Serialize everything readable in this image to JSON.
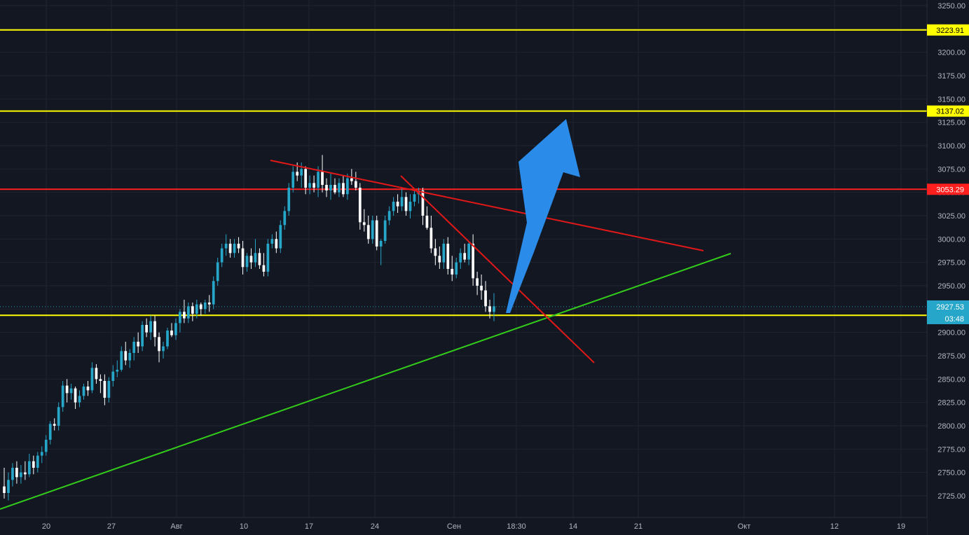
{
  "colors": {
    "background": "#131722",
    "grid": "#1f2431",
    "axis_text": "#b2b5be",
    "candle_up": "#26a6c8",
    "candle_down": "#ffffff",
    "support_line": "#ffff00",
    "resistance_line": "#ff1f1f",
    "trend_line_green": "#33cc1a",
    "trend_line_red": "#e01818",
    "current_price": "#26a6c8",
    "arrow": "#2a8ce8"
  },
  "chart_data": {
    "type": "candlestick",
    "y_range": [
      2705,
      3255
    ],
    "y_ticks": [
      "3250.00",
      "3225.00",
      "3200.00",
      "3175.00",
      "3150.00",
      "3125.00",
      "3100.00",
      "3075.00",
      "3050.00",
      "3025.00",
      "3000.00",
      "2975.00",
      "2950.00",
      "2925.00",
      "2900.00",
      "2875.00",
      "2850.00",
      "2825.00",
      "2800.00",
      "2775.00",
      "2750.00",
      "2725.00"
    ],
    "x_ticks": [
      "20",
      "27",
      "Авг",
      "10",
      "17",
      "24",
      "Сен",
      "18:30",
      "14",
      "21",
      "Окт",
      "12",
      "19"
    ],
    "candles": [
      [
        2735,
        2755,
        2722,
        2728
      ],
      [
        2728,
        2750,
        2720,
        2742
      ],
      [
        2742,
        2760,
        2735,
        2755
      ],
      [
        2755,
        2762,
        2738,
        2745
      ],
      [
        2745,
        2758,
        2738,
        2750
      ],
      [
        2750,
        2762,
        2742,
        2748
      ],
      [
        2748,
        2770,
        2745,
        2762
      ],
      [
        2762,
        2768,
        2748,
        2755
      ],
      [
        2755,
        2772,
        2750,
        2768
      ],
      [
        2768,
        2778,
        2760,
        2772
      ],
      [
        2772,
        2790,
        2768,
        2785
      ],
      [
        2785,
        2805,
        2780,
        2802
      ],
      [
        2802,
        2808,
        2795,
        2800
      ],
      [
        2800,
        2825,
        2795,
        2820
      ],
      [
        2820,
        2848,
        2815,
        2843
      ],
      [
        2843,
        2850,
        2825,
        2835
      ],
      [
        2835,
        2845,
        2828,
        2840
      ],
      [
        2840,
        2842,
        2818,
        2825
      ],
      [
        2825,
        2838,
        2820,
        2832
      ],
      [
        2832,
        2845,
        2828,
        2842
      ],
      [
        2842,
        2848,
        2832,
        2838
      ],
      [
        2838,
        2868,
        2835,
        2862
      ],
      [
        2862,
        2866,
        2845,
        2850
      ],
      [
        2850,
        2855,
        2835,
        2848
      ],
      [
        2848,
        2855,
        2822,
        2830
      ],
      [
        2830,
        2852,
        2825,
        2848
      ],
      [
        2848,
        2865,
        2842,
        2858
      ],
      [
        2858,
        2870,
        2852,
        2860
      ],
      [
        2860,
        2885,
        2858,
        2880
      ],
      [
        2880,
        2890,
        2865,
        2870
      ],
      [
        2870,
        2882,
        2862,
        2878
      ],
      [
        2878,
        2895,
        2870,
        2890
      ],
      [
        2890,
        2900,
        2878,
        2885
      ],
      [
        2885,
        2912,
        2880,
        2908
      ],
      [
        2908,
        2915,
        2895,
        2900
      ],
      [
        2900,
        2918,
        2892,
        2912
      ],
      [
        2912,
        2918,
        2885,
        2895
      ],
      [
        2895,
        2900,
        2868,
        2880
      ],
      [
        2880,
        2890,
        2872,
        2885
      ],
      [
        2885,
        2905,
        2882,
        2902
      ],
      [
        2902,
        2910,
        2895,
        2897
      ],
      [
        2897,
        2915,
        2892,
        2910
      ],
      [
        2910,
        2925,
        2900,
        2922
      ],
      [
        2922,
        2935,
        2910,
        2915
      ],
      [
        2915,
        2932,
        2910,
        2928
      ],
      [
        2928,
        2932,
        2912,
        2920
      ],
      [
        2920,
        2935,
        2915,
        2930
      ],
      [
        2930,
        2932,
        2918,
        2925
      ],
      [
        2925,
        2935,
        2920,
        2932
      ],
      [
        2932,
        2940,
        2922,
        2930
      ],
      [
        2930,
        2960,
        2925,
        2955
      ],
      [
        2955,
        2980,
        2950,
        2975
      ],
      [
        2975,
        2995,
        2970,
        2990
      ],
      [
        2990,
        3005,
        2982,
        2995
      ],
      [
        2995,
        3000,
        2980,
        2985
      ],
      [
        2985,
        3000,
        2980,
        2995
      ],
      [
        2995,
        3002,
        2985,
        2990
      ],
      [
        2990,
        2998,
        2962,
        2970
      ],
      [
        2970,
        2985,
        2965,
        2982
      ],
      [
        2982,
        2990,
        2968,
        2975
      ],
      [
        2975,
        3000,
        2970,
        2985
      ],
      [
        2985,
        2990,
        2968,
        2972
      ],
      [
        2972,
        2985,
        2960,
        2965
      ],
      [
        2965,
        3000,
        2960,
        2995
      ],
      [
        2995,
        3005,
        2990,
        3000
      ],
      [
        3000,
        3008,
        2985,
        2990
      ],
      [
        2990,
        3020,
        2985,
        3015
      ],
      [
        3015,
        3035,
        3010,
        3030
      ],
      [
        3030,
        3060,
        3025,
        3055
      ],
      [
        3055,
        3078,
        3050,
        3072
      ],
      [
        3072,
        3082,
        3062,
        3068
      ],
      [
        3068,
        3082,
        3055,
        3075
      ],
      [
        3075,
        3078,
        3048,
        3055
      ],
      [
        3055,
        3068,
        3048,
        3060
      ],
      [
        3060,
        3068,
        3050,
        3055
      ],
      [
        3055,
        3078,
        3045,
        3072
      ],
      [
        3072,
        3090,
        3050,
        3058
      ],
      [
        3058,
        3065,
        3045,
        3052
      ],
      [
        3052,
        3070,
        3042,
        3058
      ],
      [
        3058,
        3065,
        3048,
        3050
      ],
      [
        3050,
        3065,
        3045,
        3060
      ],
      [
        3060,
        3068,
        3045,
        3048
      ],
      [
        3048,
        3070,
        3042,
        3065
      ],
      [
        3065,
        3075,
        3058,
        3062
      ],
      [
        3062,
        3072,
        3052,
        3055
      ],
      [
        3055,
        3060,
        3010,
        3018
      ],
      [
        3018,
        3032,
        3008,
        3015
      ],
      [
        3015,
        3025,
        2995,
        3000
      ],
      [
        3000,
        3025,
        2995,
        3020
      ],
      [
        3020,
        3025,
        2988,
        2992
      ],
      [
        2992,
        3000,
        2972,
        2998
      ],
      [
        2998,
        3025,
        2995,
        3020
      ],
      [
        3020,
        3035,
        3015,
        3030
      ],
      [
        3030,
        3045,
        3025,
        3040
      ],
      [
        3040,
        3048,
        3028,
        3035
      ],
      [
        3035,
        3055,
        3030,
        3045
      ],
      [
        3045,
        3050,
        3025,
        3030
      ],
      [
        3030,
        3048,
        3022,
        3040
      ],
      [
        3040,
        3052,
        3035,
        3048
      ],
      [
        3048,
        3055,
        3038,
        3052
      ],
      [
        3052,
        3055,
        3015,
        3025
      ],
      [
        3025,
        3035,
        3010,
        3012
      ],
      [
        3012,
        3025,
        2985,
        2990
      ],
      [
        2990,
        3000,
        2972,
        2982
      ],
      [
        2982,
        2992,
        2968,
        2975
      ],
      [
        2975,
        3000,
        2968,
        2995
      ],
      [
        2995,
        3002,
        2962,
        2968
      ],
      [
        2968,
        2982,
        2955,
        2962
      ],
      [
        2962,
        2980,
        2958,
        2975
      ],
      [
        2975,
        2990,
        2968,
        2985
      ],
      [
        2985,
        2995,
        2975,
        2978
      ],
      [
        2978,
        2998,
        2972,
        2995
      ],
      [
        2995,
        3005,
        2950,
        2958
      ],
      [
        2958,
        2965,
        2940,
        2950
      ],
      [
        2950,
        2962,
        2935,
        2945
      ],
      [
        2945,
        2955,
        2922,
        2928
      ],
      [
        2928,
        2935,
        2915,
        2922
      ],
      [
        2922,
        2942,
        2912,
        2928
      ]
    ]
  },
  "levels": [
    {
      "label": "3223.91",
      "value": 3223.91,
      "kind": "yellow"
    },
    {
      "label": "3137.02",
      "value": 3137.02,
      "kind": "yellow"
    },
    {
      "label": "3053.29",
      "value": 3053.29,
      "kind": "red"
    },
    {
      "label": "2918.34",
      "value": 2918.34,
      "kind": "yellow"
    }
  ],
  "current_price": {
    "label": "2927.53",
    "value": 2927.53,
    "countdown": "03:48"
  }
}
